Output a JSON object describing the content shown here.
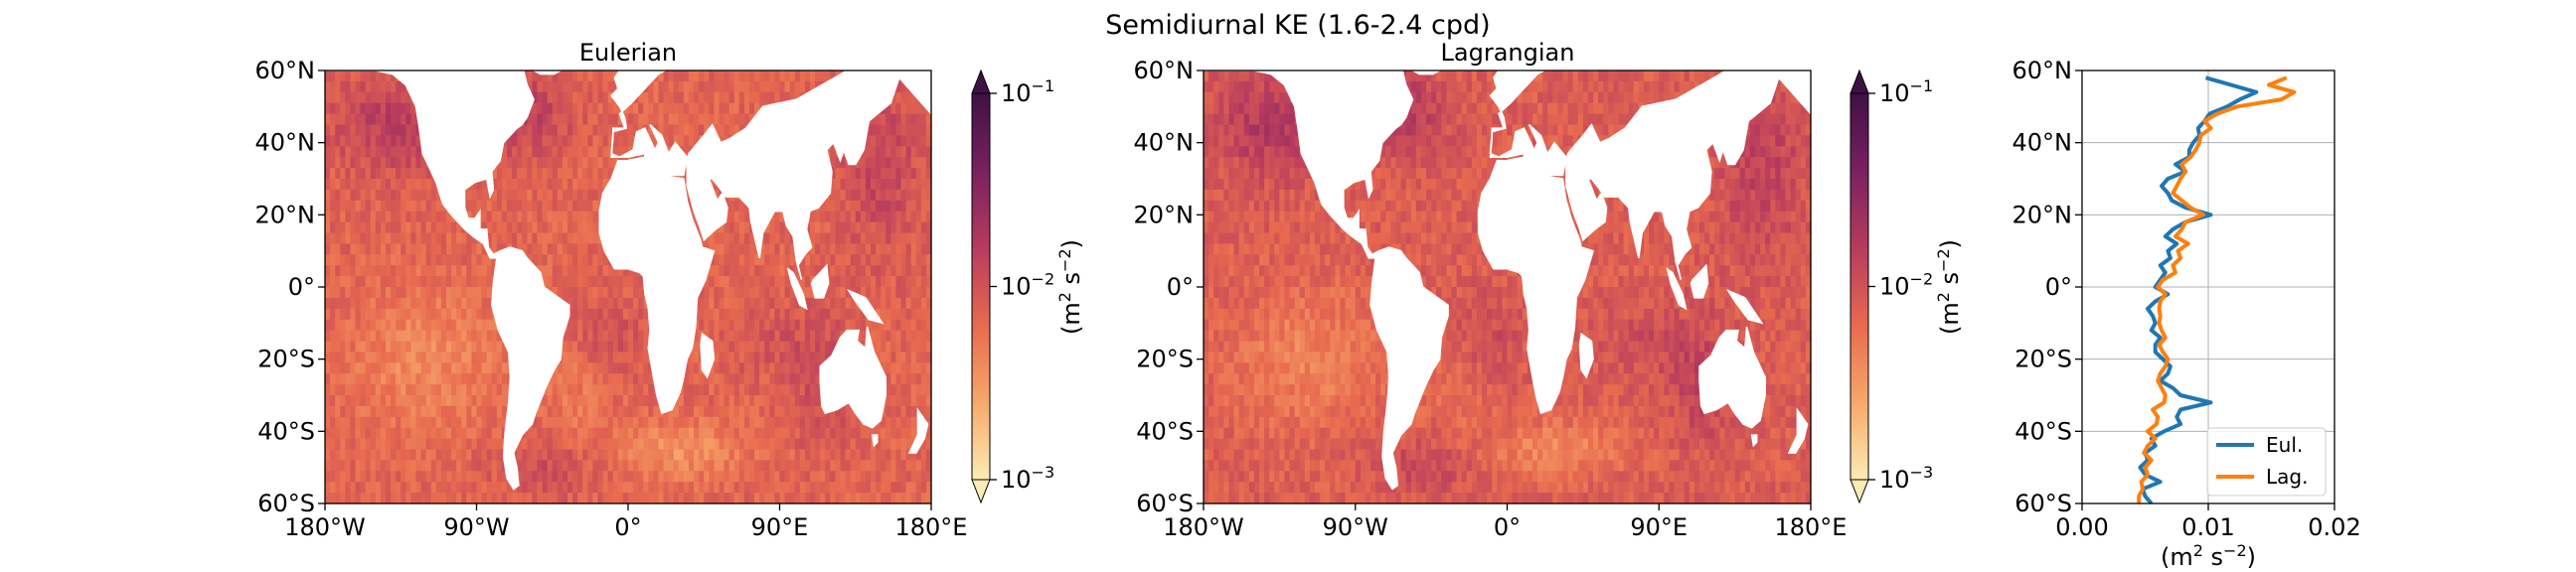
{
  "suptitle": "Semidiurnal KE (1.6-2.4 cpd)",
  "chart_data": [
    {
      "type": "heatmap",
      "title": "Eulerian",
      "xticks": [
        "180°W",
        "90°W",
        "0°",
        "90°E",
        "180°E"
      ],
      "yticks": [
        "60°N",
        "40°N",
        "20°N",
        "0°",
        "20°S",
        "40°S",
        "60°S"
      ],
      "xlim": [
        -180,
        180
      ],
      "ylim": [
        -60,
        60
      ],
      "colorbar": {
        "label_main": "(m",
        "label_exp1": "2",
        "label_mid": " s",
        "label_exp2": "−2",
        "label_end": ")",
        "scale": "log",
        "range": [
          0.001,
          0.1
        ],
        "ticks": [
          {
            "base": "10",
            "exp": "−1",
            "value": 0.1
          },
          {
            "base": "10",
            "exp": "−2",
            "value": 0.01
          },
          {
            "base": "10",
            "exp": "−3",
            "value": 0.001
          }
        ],
        "colormap": [
          "#fcecb4",
          "#f7a86a",
          "#e86a4f",
          "#b73b5e",
          "#7a2160",
          "#3f1044"
        ]
      },
      "field_base_log10": -2.15
    },
    {
      "type": "heatmap",
      "title": "Lagrangian",
      "xticks": [
        "180°W",
        "90°W",
        "0°",
        "90°E",
        "180°E"
      ],
      "yticks": [
        "60°N",
        "40°N",
        "20°N",
        "0°",
        "20°S",
        "40°S",
        "60°S"
      ],
      "xlim": [
        -180,
        180
      ],
      "ylim": [
        -60,
        60
      ],
      "colorbar": {
        "label_main": "(m",
        "label_exp1": "2",
        "label_mid": " s",
        "label_exp2": "−2",
        "label_end": ")",
        "scale": "log",
        "range": [
          0.001,
          0.1
        ],
        "ticks": [
          {
            "base": "10",
            "exp": "−1",
            "value": 0.1
          },
          {
            "base": "10",
            "exp": "−2",
            "value": 0.01
          },
          {
            "base": "10",
            "exp": "−3",
            "value": 0.001
          }
        ],
        "colormap": [
          "#fcecb4",
          "#f7a86a",
          "#e86a4f",
          "#b73b5e",
          "#7a2160",
          "#3f1044"
        ]
      },
      "field_base_log10": -2.1
    },
    {
      "type": "line",
      "xticks": [
        "0.00",
        "0.01",
        "0.02"
      ],
      "xlim": [
        0,
        0.02
      ],
      "ylim": [
        -60,
        60
      ],
      "yticks": [
        "60°N",
        "40°N",
        "20°N",
        "0°",
        "20°S",
        "40°S",
        "60°S"
      ],
      "xlabel_main": "(m",
      "xlabel_exp1": "2",
      "xlabel_mid": " s",
      "xlabel_exp2": "−2",
      "xlabel_end": ")",
      "grid": true,
      "legend_position": "lower-right",
      "y": [
        -60,
        -58,
        -56,
        -54,
        -52,
        -50,
        -48,
        -46,
        -44,
        -42,
        -40,
        -38,
        -36,
        -34,
        -32,
        -30,
        -28,
        -26,
        -24,
        -22,
        -20,
        -18,
        -16,
        -14,
        -12,
        -10,
        -8,
        -6,
        -4,
        -2,
        0,
        2,
        4,
        6,
        8,
        10,
        12,
        14,
        16,
        18,
        20,
        22,
        24,
        26,
        28,
        30,
        32,
        34,
        36,
        38,
        40,
        42,
        44,
        46,
        48,
        50,
        52,
        54,
        56,
        58
      ],
      "series": [
        {
          "name": "Eul.",
          "color": "#1f77b4",
          "values": [
            0.0055,
            0.005,
            0.0048,
            0.0062,
            0.005,
            0.0046,
            0.0052,
            0.005,
            0.0058,
            0.0055,
            0.0065,
            0.0078,
            0.0075,
            0.0078,
            0.0102,
            0.0078,
            0.0072,
            0.0062,
            0.0068,
            0.007,
            0.0064,
            0.0058,
            0.0058,
            0.0062,
            0.0055,
            0.0058,
            0.0056,
            0.0052,
            0.0058,
            0.0068,
            0.0058,
            0.0062,
            0.0066,
            0.0062,
            0.007,
            0.0068,
            0.0075,
            0.0066,
            0.0072,
            0.0082,
            0.0102,
            0.0082,
            0.0071,
            0.0068,
            0.0063,
            0.0068,
            0.0082,
            0.0074,
            0.0085,
            0.0085,
            0.0088,
            0.0093,
            0.0092,
            0.0097,
            0.0101,
            0.0115,
            0.0125,
            0.0138,
            0.0118,
            0.0098
          ]
        },
        {
          "name": "Lag.",
          "color": "#ff7f0e",
          "values": [
            0.0045,
            0.0045,
            0.0048,
            0.0047,
            0.0052,
            0.005,
            0.0055,
            0.0049,
            0.0052,
            0.0058,
            0.0052,
            0.0059,
            0.006,
            0.0056,
            0.0065,
            0.0066,
            0.0063,
            0.006,
            0.0062,
            0.0066,
            0.0068,
            0.0064,
            0.0061,
            0.0066,
            0.0063,
            0.0061,
            0.0062,
            0.0061,
            0.0062,
            0.0066,
            0.006,
            0.0064,
            0.0074,
            0.0072,
            0.0078,
            0.0076,
            0.0084,
            0.0074,
            0.0079,
            0.0082,
            0.0096,
            0.0086,
            0.0079,
            0.0072,
            0.0075,
            0.0078,
            0.0082,
            0.0079,
            0.0086,
            0.009,
            0.0093,
            0.0094,
            0.0102,
            0.0097,
            0.0107,
            0.0123,
            0.0158,
            0.0168,
            0.0148,
            0.0162
          ]
        }
      ]
    }
  ]
}
